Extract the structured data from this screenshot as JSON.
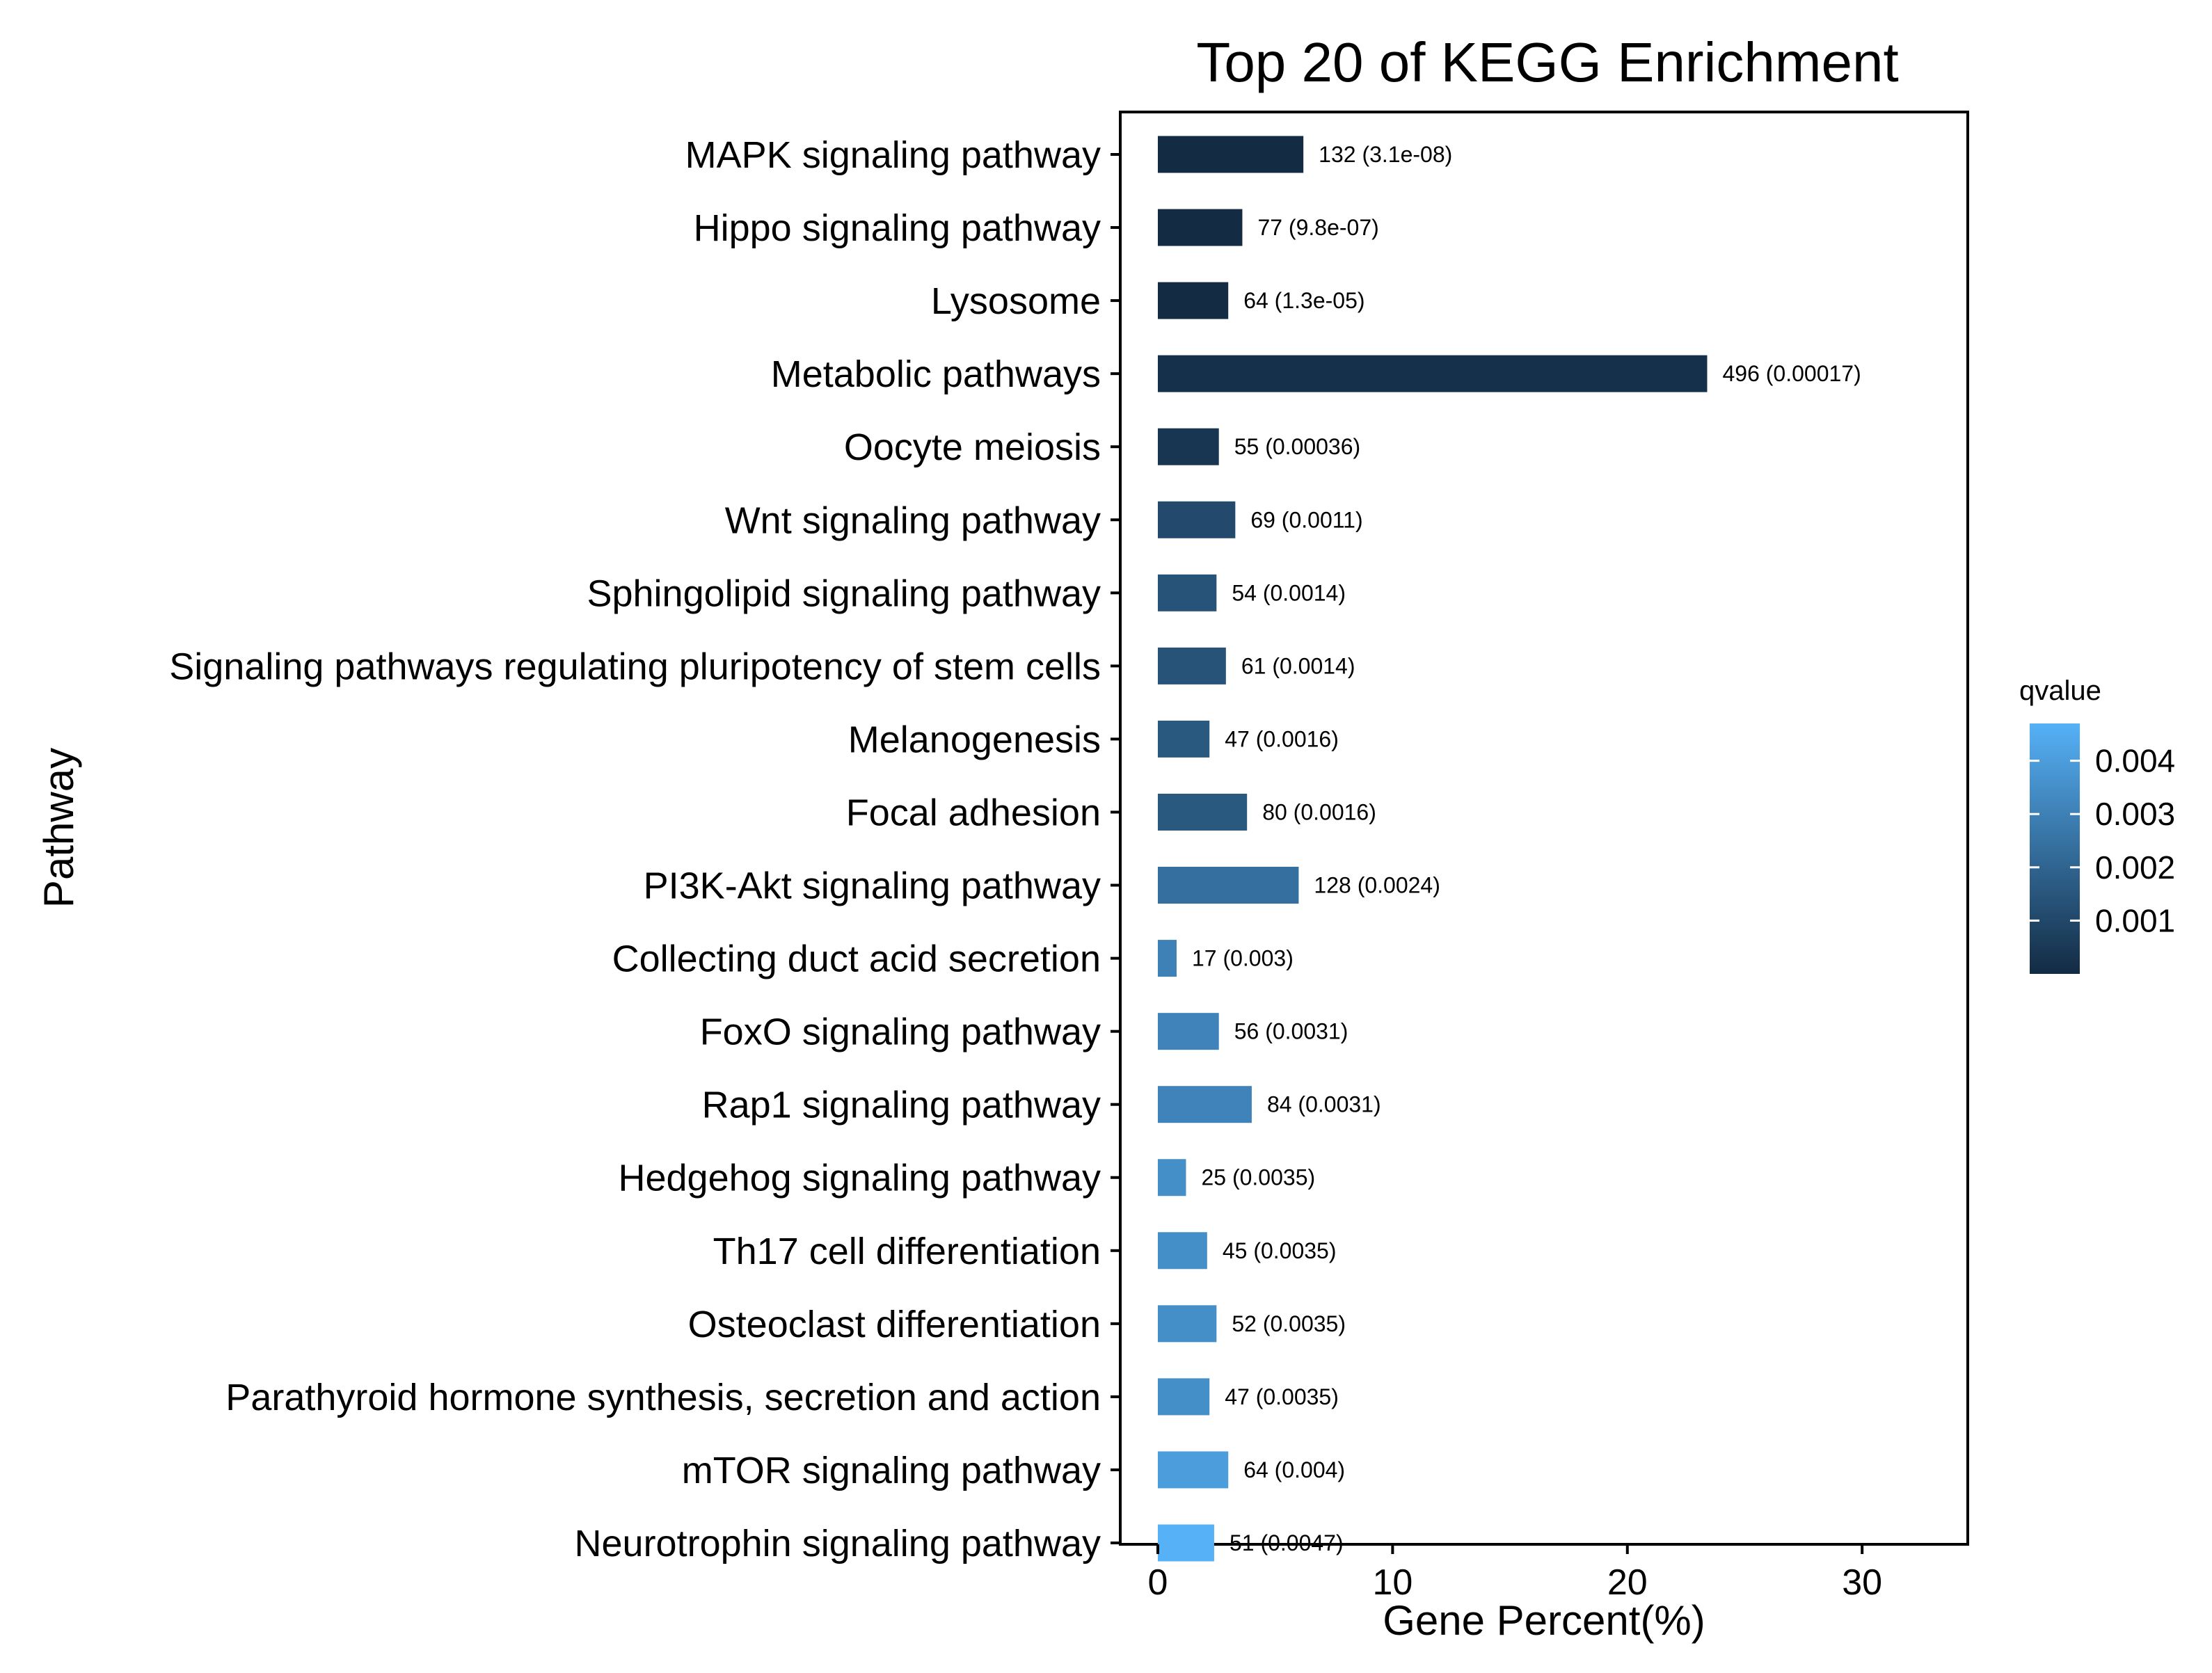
{
  "chart_data": {
    "type": "bar",
    "orientation": "horizontal",
    "title": "Top 20 of KEGG Enrichment",
    "xlabel": "Gene Percent(%)",
    "ylabel": "Pathway",
    "xlim": [
      -1.6,
      34.5
    ],
    "xticks": [
      0,
      10,
      20,
      30
    ],
    "grid": false,
    "legend": {
      "title": "qvalue",
      "placement": "right",
      "range": [
        3e-08,
        0.0047
      ],
      "ticks": [
        "0.004",
        "0.003",
        "0.002",
        "0.001"
      ],
      "tick_values": [
        0.004,
        0.003,
        0.002,
        0.001
      ],
      "colors": [
        "#132B43",
        "#56B1F7"
      ]
    },
    "categories": [
      "MAPK signaling pathway",
      "Hippo signaling pathway",
      "Lysosome",
      "Metabolic pathways",
      "Oocyte meiosis",
      "Wnt signaling pathway",
      "Sphingolipid signaling pathway",
      "Signaling pathways regulating pluripotency of stem cells",
      "Melanogenesis",
      "Focal adhesion",
      "PI3K-Akt signaling pathway",
      "Collecting duct acid secretion",
      "FoxO signaling pathway",
      "Rap1 signaling pathway",
      "Hedgehog signaling pathway",
      "Th17 cell differentiation",
      "Osteoclast differentiation",
      "Parathyroid hormone synthesis, secretion and action",
      "mTOR signaling pathway",
      "Neurotrophin signaling pathway"
    ],
    "values": [
      6.2,
      3.6,
      3.0,
      23.4,
      2.6,
      3.3,
      2.5,
      2.9,
      2.2,
      3.8,
      6.0,
      0.8,
      2.6,
      4.0,
      1.2,
      2.1,
      2.5,
      2.2,
      3.0,
      2.4
    ],
    "qvalues": [
      3.1e-08,
      9.8e-07,
      1.3e-05,
      0.00017,
      0.00036,
      0.0011,
      0.0014,
      0.0014,
      0.0016,
      0.0016,
      0.0024,
      0.003,
      0.0031,
      0.0031,
      0.0035,
      0.0035,
      0.0035,
      0.0035,
      0.004,
      0.0047
    ],
    "data_labels": [
      "132 (3.1e-08)",
      "77 (9.8e-07)",
      "64 (1.3e-05)",
      "496 (0.00017)",
      "55 (0.00036)",
      "69 (0.0011)",
      "54 (0.0014)",
      "61 (0.0014)",
      "47 (0.0016)",
      "80 (0.0016)",
      "128 (0.0024)",
      "17 (0.003)",
      "56 (0.0031)",
      "84 (0.0031)",
      "25 (0.0035)",
      "45 (0.0035)",
      "52 (0.0035)",
      "47 (0.0035)",
      "64 (0.004)",
      "51 (0.0047)"
    ]
  }
}
